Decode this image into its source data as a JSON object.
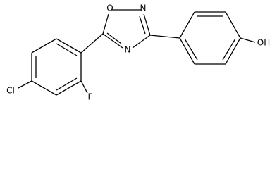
{
  "atoms": [
    {
      "label": "O"
    },
    {
      "label": "N"
    },
    {
      "label": "N"
    },
    {
      "label": "OH"
    },
    {
      "label": "Cl"
    },
    {
      "label": "F"
    }
  ]
}
